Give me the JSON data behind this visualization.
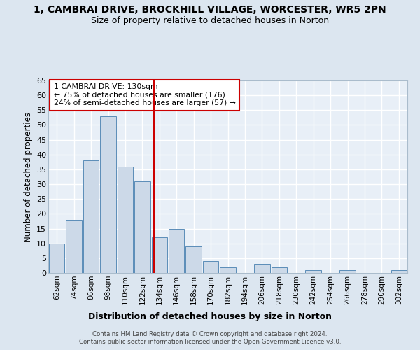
{
  "title_line1": "1, CAMBRAI DRIVE, BROCKHILL VILLAGE, WORCESTER, WR5 2PN",
  "title_line2": "Size of property relative to detached houses in Norton",
  "xlabel": "Distribution of detached houses by size in Norton",
  "ylabel": "Number of detached properties",
  "categories": [
    "62sqm",
    "74sqm",
    "86sqm",
    "98sqm",
    "110sqm",
    "122sqm",
    "134sqm",
    "146sqm",
    "158sqm",
    "170sqm",
    "182sqm",
    "194sqm",
    "206sqm",
    "218sqm",
    "230sqm",
    "242sqm",
    "254sqm",
    "266sqm",
    "278sqm",
    "290sqm",
    "302sqm"
  ],
  "values": [
    10,
    18,
    38,
    53,
    36,
    31,
    12,
    15,
    9,
    4,
    2,
    0,
    3,
    2,
    0,
    1,
    0,
    1,
    0,
    0,
    1
  ],
  "bar_color": "#ccd9e8",
  "bar_edge_color": "#5b8db8",
  "ref_line_color": "#cc0000",
  "annotation_box_color": "#ffffff",
  "annotation_box_edge": "#cc0000",
  "ref_line_label": "1 CAMBRAI DRIVE: 130sqm",
  "annotation_line1": "← 75% of detached houses are smaller (176)",
  "annotation_line2": "24% of semi-detached houses are larger (57) →",
  "ylim": [
    0,
    65
  ],
  "yticks": [
    0,
    5,
    10,
    15,
    20,
    25,
    30,
    35,
    40,
    45,
    50,
    55,
    60,
    65
  ],
  "bg_color": "#dce6f0",
  "plot_bg_color": "#e8eff7",
  "grid_color": "#ffffff",
  "footer_line1": "Contains HM Land Registry data © Crown copyright and database right 2024.",
  "footer_line2": "Contains public sector information licensed under the Open Government Licence v3.0."
}
